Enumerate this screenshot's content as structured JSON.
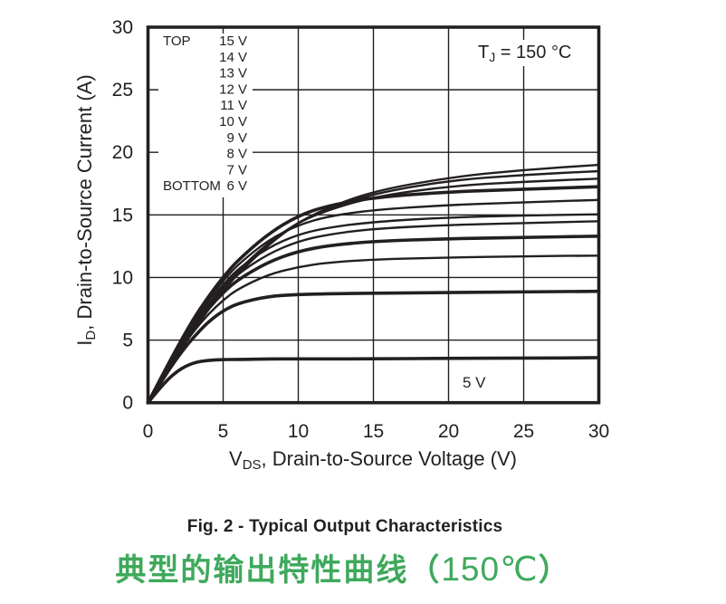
{
  "captions": {
    "figure": "Fig. 2 - Typical Output Characteristics",
    "chinese_prefix": "典型的输出特性曲线",
    "paren_open": "（",
    "temperature": "150℃",
    "paren_close": "）",
    "green": "#3fa95c",
    "ink": "#231f20"
  },
  "chart_data": {
    "type": "line",
    "title": "",
    "xlabel": "VDS, Drain-to-Source Voltage (V)",
    "ylabel": "ID, Drain-to-Source Current (A)",
    "xlabel_parts": {
      "pre": "V",
      "sub": "DS",
      "post": ", Drain-to-Source Voltage (V)"
    },
    "ylabel_parts": {
      "pre": "I",
      "sub": "D",
      "post": ", Drain-to-Source Current (A)"
    },
    "annotation_parts": {
      "pre": "T",
      "sub": "J",
      "post": " = 150 °C"
    },
    "xlim": [
      0,
      30
    ],
    "ylim": [
      0,
      30
    ],
    "xticks": [
      0,
      5,
      10,
      15,
      20,
      25,
      30
    ],
    "yticks": [
      0,
      5,
      10,
      15,
      20,
      25,
      30
    ],
    "grid": true,
    "legend": {
      "position": "upper-left-inside",
      "top_label": "TOP",
      "bottom_label": "BOTTOM",
      "entries": [
        "15 V",
        "14 V",
        "13 V",
        "12 V",
        "11 V",
        "10 V",
        "9 V",
        "8 V",
        "7 V",
        "6 V"
      ]
    },
    "inline_label": {
      "text": "5 V",
      "x": 21.7,
      "y": 1.2
    },
    "x": [
      0,
      1,
      2,
      3,
      4,
      5,
      6,
      8,
      10,
      12,
      15,
      20,
      25,
      30
    ],
    "series": [
      {
        "name": "5 V",
        "emphasis": true,
        "values": [
          0,
          1.5,
          2.6,
          3.2,
          3.4,
          3.45,
          3.45,
          3.5,
          3.5,
          3.5,
          3.5,
          3.55,
          3.55,
          3.6
        ]
      },
      {
        "name": "6 V",
        "emphasis": true,
        "values": [
          0,
          1.9,
          3.7,
          5.2,
          6.45,
          7.35,
          7.95,
          8.5,
          8.65,
          8.7,
          8.75,
          8.8,
          8.85,
          8.9
        ]
      },
      {
        "name": "7 V",
        "emphasis": false,
        "values": [
          0,
          2.0,
          3.95,
          5.65,
          7.05,
          8.2,
          9.1,
          10.25,
          10.85,
          11.2,
          11.45,
          11.6,
          11.7,
          11.75
        ]
      },
      {
        "name": "8 V",
        "emphasis": true,
        "values": [
          0,
          2.1,
          4.15,
          6.0,
          7.5,
          8.8,
          9.85,
          11.25,
          12.1,
          12.55,
          12.9,
          13.1,
          13.2,
          13.3
        ]
      },
      {
        "name": "9 V",
        "emphasis": false,
        "values": [
          0,
          2.15,
          4.25,
          6.15,
          7.8,
          9.15,
          10.3,
          11.9,
          12.9,
          13.45,
          13.9,
          14.2,
          14.35,
          14.5
        ]
      },
      {
        "name": "10 V",
        "emphasis": false,
        "values": [
          0,
          2.2,
          4.35,
          6.35,
          8.05,
          9.45,
          10.7,
          12.4,
          13.45,
          14.0,
          14.45,
          14.8,
          14.95,
          15.05
        ]
      },
      {
        "name": "11 V",
        "emphasis": false,
        "values": [
          0,
          2.25,
          4.45,
          6.45,
          8.25,
          9.75,
          11.05,
          13.0,
          14.2,
          14.9,
          15.4,
          15.8,
          16.0,
          16.2
        ]
      },
      {
        "name": "12 V",
        "emphasis": true,
        "values": [
          0,
          2.3,
          4.55,
          6.65,
          8.45,
          10.05,
          11.4,
          13.5,
          14.95,
          15.75,
          16.4,
          16.85,
          17.05,
          17.25
        ]
      },
      {
        "name": "13 V",
        "emphasis": false,
        "values": [
          0,
          2.05,
          4.05,
          6.0,
          7.7,
          9.25,
          10.55,
          12.8,
          14.4,
          15.4,
          16.45,
          17.3,
          17.65,
          17.9
        ]
      },
      {
        "name": "14 V",
        "emphasis": false,
        "values": [
          0,
          2.0,
          3.95,
          5.85,
          7.55,
          9.1,
          10.45,
          12.7,
          14.45,
          15.5,
          16.7,
          17.75,
          18.2,
          18.5
        ]
      },
      {
        "name": "15 V",
        "emphasis": false,
        "values": [
          0,
          1.95,
          3.85,
          5.7,
          7.4,
          8.95,
          10.3,
          12.6,
          14.4,
          15.6,
          16.9,
          18.0,
          18.6,
          19.0
        ]
      }
    ]
  }
}
